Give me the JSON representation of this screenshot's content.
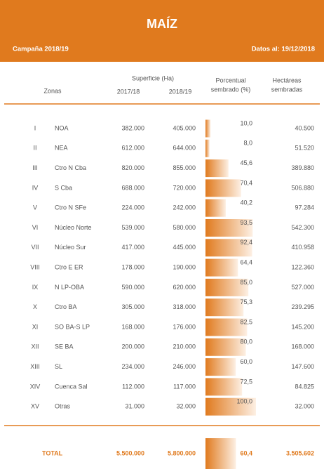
{
  "header": {
    "title": "MAÍZ",
    "campaign": "Campaña 2018/19",
    "date": "Datos al: 19/12/2018"
  },
  "columns": {
    "zones": "Zonas",
    "area": "Superficie (Ha)",
    "area_2017_18": "2017/18",
    "area_2018_19": "2018/19",
    "percent": [
      "Porcentual",
      "sembrado (%)"
    ],
    "hectares": [
      "Hectáreas",
      "sembradas"
    ]
  },
  "table": {
    "rows": [
      {
        "number": "I",
        "zone": "NOA",
        "area_2017_18": "382.000",
        "area_2018_19": "405.000",
        "percent": {
          "value": 10.0,
          "label": "10,0"
        },
        "hectares": "40.500"
      },
      {
        "number": "II",
        "zone": "NEA",
        "area_2017_18": "612.000",
        "area_2018_19": "644.000",
        "percent": {
          "value": 8.0,
          "label": "8,0"
        },
        "hectares": "51.520"
      },
      {
        "number": "III",
        "zone": "Ctro N Cba",
        "area_2017_18": "820.000",
        "area_2018_19": "855.000",
        "percent": {
          "value": 45.6,
          "label": "45,6"
        },
        "hectares": "389.880"
      },
      {
        "number": "IV",
        "zone": "S Cba",
        "area_2017_18": "688.000",
        "area_2018_19": "720.000",
        "percent": {
          "value": 70.4,
          "label": "70,4"
        },
        "hectares": "506.880"
      },
      {
        "number": "V",
        "zone": "Ctro N SFe",
        "area_2017_18": "224.000",
        "area_2018_19": "242.000",
        "percent": {
          "value": 40.2,
          "label": "40,2"
        },
        "hectares": "97.284"
      },
      {
        "number": "VI",
        "zone": "Núcleo Norte",
        "area_2017_18": "539.000",
        "area_2018_19": "580.000",
        "percent": {
          "value": 93.5,
          "label": "93,5"
        },
        "hectares": "542.300"
      },
      {
        "number": "VII",
        "zone": "Núcleo Sur",
        "area_2017_18": "417.000",
        "area_2018_19": "445.000",
        "percent": {
          "value": 92.4,
          "label": "92,4"
        },
        "hectares": "410.958"
      },
      {
        "number": "VIII",
        "zone": "Ctro E ER",
        "area_2017_18": "178.000",
        "area_2018_19": "190.000",
        "percent": {
          "value": 64.4,
          "label": "64,4"
        },
        "hectares": "122.360"
      },
      {
        "number": "IX",
        "zone": "N LP-OBA",
        "area_2017_18": "590.000",
        "area_2018_19": "620.000",
        "percent": {
          "value": 85.0,
          "label": "85,0"
        },
        "hectares": "527.000"
      },
      {
        "number": "X",
        "zone": "Ctro BA",
        "area_2017_18": "305.000",
        "area_2018_19": "318.000",
        "percent": {
          "value": 75.3,
          "label": "75,3"
        },
        "hectares": "239.295"
      },
      {
        "number": "XI",
        "zone": "SO BA-S LP",
        "area_2017_18": "168.000",
        "area_2018_19": "176.000",
        "percent": {
          "value": 82.5,
          "label": "82,5"
        },
        "hectares": "145.200"
      },
      {
        "number": "XII",
        "zone": "SE BA",
        "area_2017_18": "200.000",
        "area_2018_19": "210.000",
        "percent": {
          "value": 80.0,
          "label": "80,0"
        },
        "hectares": "168.000"
      },
      {
        "number": "XIII",
        "zone": "SL",
        "area_2017_18": "234.000",
        "area_2018_19": "246.000",
        "percent": {
          "value": 60.0,
          "label": "60,0"
        },
        "hectares": "147.600"
      },
      {
        "number": "XIV",
        "zone": "Cuenca Sal",
        "area_2017_18": "112.000",
        "area_2018_19": "117.000",
        "percent": {
          "value": 72.5,
          "label": "72,5"
        },
        "hectares": "84.825"
      },
      {
        "number": "XV",
        "zone": "Otras",
        "area_2017_18": "31.000",
        "area_2018_19": "32.000",
        "percent": {
          "value": 100.0,
          "label": "100,0"
        },
        "hectares": "32.000"
      }
    ],
    "total": {
      "zone": "TOTAL",
      "area_2017_18": "5.500.000",
      "area_2018_19": "5.800.000",
      "percent": {
        "value": 60.4,
        "label": "60,4"
      },
      "hectares": "3.505.602"
    }
  }
}
